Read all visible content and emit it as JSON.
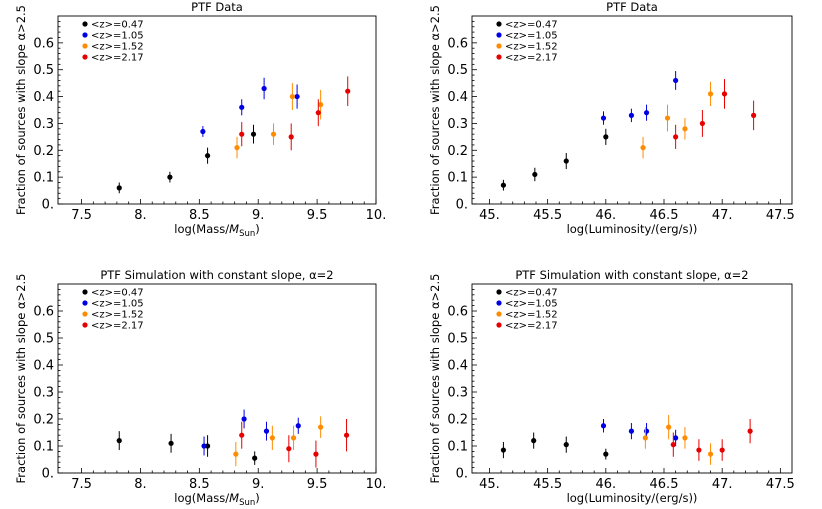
{
  "colors": {
    "z047": "#000000",
    "z105": "#0000e6",
    "z152": "#ff8c00",
    "z217": "#e60000"
  },
  "chart_data": [
    {
      "type": "scatter",
      "title": "PTF Data",
      "xlabel_pre": "log(Mass/",
      "xlabel_sym": "M",
      "xlabel_sub": "Sun",
      "xlabel_post": ")",
      "ylabel": "Fraction of sources with slope α>2.5",
      "xlim": [
        7.3,
        10.0
      ],
      "ylim": [
        0,
        0.7
      ],
      "xticks": [
        7.5,
        8.0,
        8.5,
        9.0,
        9.5,
        10.0
      ],
      "xtick_labels": [
        "7.5",
        "8.",
        "8.5",
        "9.",
        "9.5",
        "10."
      ],
      "yticks": [
        0,
        0.1,
        0.2,
        0.3,
        0.4,
        0.5,
        0.6
      ],
      "ytick_labels": [
        "0.",
        "0.1",
        "0.2",
        "0.3",
        "0.4",
        "0.5",
        "0.6"
      ],
      "legend": "top-left",
      "series": [
        {
          "name": "<z>=0.47",
          "color_key": "z047",
          "x": [
            7.82,
            8.25,
            8.57,
            8.96
          ],
          "y": [
            0.06,
            0.1,
            0.18,
            0.26
          ],
          "err": [
            0.02,
            0.02,
            0.03,
            0.035
          ]
        },
        {
          "name": "<z>=1.05",
          "color_key": "z105",
          "x": [
            8.53,
            8.86,
            9.05,
            9.33
          ],
          "y": [
            0.27,
            0.36,
            0.43,
            0.4
          ],
          "err": [
            0.02,
            0.03,
            0.04,
            0.045
          ]
        },
        {
          "name": "<z>=1.52",
          "color_key": "z152",
          "x": [
            8.82,
            9.13,
            9.29,
            9.53
          ],
          "y": [
            0.21,
            0.26,
            0.4,
            0.37
          ],
          "err": [
            0.04,
            0.04,
            0.05,
            0.055
          ]
        },
        {
          "name": "<z>=2.17",
          "color_key": "z217",
          "x": [
            8.86,
            9.28,
            9.51,
            9.76
          ],
          "y": [
            0.26,
            0.25,
            0.34,
            0.42
          ],
          "err": [
            0.045,
            0.05,
            0.05,
            0.055
          ]
        }
      ]
    },
    {
      "type": "scatter",
      "title": "PTF Data",
      "xlabel_pre": "log(Luminosity/(erg/s))",
      "xlabel_sym": "",
      "xlabel_sub": "",
      "xlabel_post": "",
      "ylabel": "Fraction of sources with slope α>2.5",
      "xlim": [
        44.85,
        47.6
      ],
      "ylim": [
        0,
        0.7
      ],
      "xticks": [
        45.0,
        45.5,
        46.0,
        46.5,
        47.0,
        47.5
      ],
      "xtick_labels": [
        "45.",
        "45.5",
        "46.",
        "46.5",
        "47.",
        "47.5"
      ],
      "yticks": [
        0,
        0.1,
        0.2,
        0.3,
        0.4,
        0.5,
        0.6
      ],
      "ytick_labels": [
        "0.",
        "0.1",
        "0.2",
        "0.3",
        "0.4",
        "0.5",
        "0.6"
      ],
      "legend": "top-left",
      "series": [
        {
          "name": "<z>=0.47",
          "color_key": "z047",
          "x": [
            45.12,
            45.39,
            45.66,
            46.0
          ],
          "y": [
            0.07,
            0.11,
            0.16,
            0.25
          ],
          "err": [
            0.02,
            0.025,
            0.03,
            0.03
          ]
        },
        {
          "name": "<z>=1.05",
          "color_key": "z105",
          "x": [
            45.98,
            46.22,
            46.35,
            46.6
          ],
          "y": [
            0.32,
            0.33,
            0.34,
            0.46
          ],
          "err": [
            0.025,
            0.025,
            0.03,
            0.035
          ]
        },
        {
          "name": "<z>=1.52",
          "color_key": "z152",
          "x": [
            46.32,
            46.53,
            46.68,
            46.9
          ],
          "y": [
            0.21,
            0.32,
            0.28,
            0.41
          ],
          "err": [
            0.04,
            0.05,
            0.04,
            0.045
          ]
        },
        {
          "name": "<z>=2.17",
          "color_key": "z217",
          "x": [
            46.6,
            46.83,
            47.02,
            47.27
          ],
          "y": [
            0.25,
            0.3,
            0.41,
            0.33
          ],
          "err": [
            0.045,
            0.05,
            0.055,
            0.055
          ]
        }
      ]
    },
    {
      "type": "scatter",
      "title": "PTF Simulation with constant slope, α=2",
      "xlabel_pre": "log(Mass/",
      "xlabel_sym": "M",
      "xlabel_sub": "Sun",
      "xlabel_post": ")",
      "ylabel": "Fraction of sources with slope α>2.5",
      "xlim": [
        7.3,
        10.0
      ],
      "ylim": [
        0,
        0.7
      ],
      "xticks": [
        7.5,
        8.0,
        8.5,
        9.0,
        9.5,
        10.0
      ],
      "xtick_labels": [
        "7.5",
        "8.",
        "8.5",
        "9.",
        "9.5",
        "10."
      ],
      "yticks": [
        0,
        0.1,
        0.2,
        0.3,
        0.4,
        0.5,
        0.6
      ],
      "ytick_labels": [
        "0.",
        "0.1",
        "0.2",
        "0.3",
        "0.4",
        "0.5",
        "0.6"
      ],
      "legend": "top-left",
      "series": [
        {
          "name": "<z>=0.47",
          "color_key": "z047",
          "x": [
            7.82,
            8.26,
            8.57,
            8.97
          ],
          "y": [
            0.12,
            0.11,
            0.1,
            0.055
          ],
          "err": [
            0.035,
            0.035,
            0.04,
            0.025
          ]
        },
        {
          "name": "<z>=1.05",
          "color_key": "z105",
          "x": [
            8.54,
            8.88,
            9.07,
            9.34
          ],
          "y": [
            0.1,
            0.2,
            0.155,
            0.175
          ],
          "err": [
            0.035,
            0.035,
            0.035,
            0.03
          ]
        },
        {
          "name": "<z>=1.52",
          "color_key": "z152",
          "x": [
            8.81,
            9.12,
            9.3,
            9.53
          ],
          "y": [
            0.07,
            0.13,
            0.13,
            0.17
          ],
          "err": [
            0.045,
            0.045,
            0.045,
            0.04
          ]
        },
        {
          "name": "<z>=2.17",
          "color_key": "z217",
          "x": [
            8.86,
            9.26,
            9.49,
            9.75
          ],
          "y": [
            0.14,
            0.09,
            0.07,
            0.14
          ],
          "err": [
            0.05,
            0.05,
            0.05,
            0.06
          ]
        }
      ]
    },
    {
      "type": "scatter",
      "title": "PTF Simulation with constant slope, α=2",
      "xlabel_pre": "log(Luminosity/(erg/s))",
      "xlabel_sym": "",
      "xlabel_sub": "",
      "xlabel_post": "",
      "ylabel": "Fraction of sources with slope α>2.5",
      "xlim": [
        44.85,
        47.6
      ],
      "ylim": [
        0,
        0.7
      ],
      "xticks": [
        45.0,
        45.5,
        46.0,
        46.5,
        47.0,
        47.5
      ],
      "xtick_labels": [
        "45.",
        "45.5",
        "46.",
        "46.5",
        "47.",
        "47.5"
      ],
      "yticks": [
        0,
        0.1,
        0.2,
        0.3,
        0.4,
        0.5,
        0.6
      ],
      "ytick_labels": [
        "0.",
        "0.1",
        "0.2",
        "0.3",
        "0.4",
        "0.5",
        "0.6"
      ],
      "legend": "top-left",
      "series": [
        {
          "name": "<z>=0.47",
          "color_key": "z047",
          "x": [
            45.12,
            45.38,
            45.66,
            46.0
          ],
          "y": [
            0.085,
            0.12,
            0.105,
            0.07
          ],
          "err": [
            0.03,
            0.03,
            0.03,
            0.02
          ]
        },
        {
          "name": "<z>=1.05",
          "color_key": "z105",
          "x": [
            45.98,
            46.22,
            46.35,
            46.6
          ],
          "y": [
            0.175,
            0.155,
            0.155,
            0.13
          ],
          "err": [
            0.025,
            0.03,
            0.03,
            0.03
          ]
        },
        {
          "name": "<z>=1.52",
          "color_key": "z152",
          "x": [
            46.34,
            46.54,
            46.68,
            46.9
          ],
          "y": [
            0.13,
            0.17,
            0.13,
            0.07
          ],
          "err": [
            0.04,
            0.045,
            0.04,
            0.04
          ]
        },
        {
          "name": "<z>=2.17",
          "color_key": "z217",
          "x": [
            46.58,
            46.8,
            47.0,
            47.24
          ],
          "y": [
            0.105,
            0.085,
            0.085,
            0.155
          ],
          "err": [
            0.045,
            0.04,
            0.04,
            0.045
          ]
        }
      ]
    }
  ]
}
